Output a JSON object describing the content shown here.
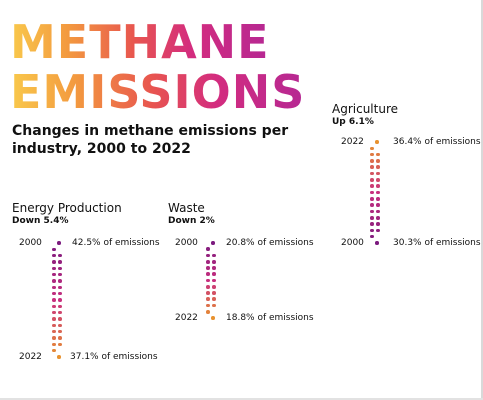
{
  "title": [
    "METHANE",
    "EMISSIONS"
  ],
  "subtitle": "Changes in methane emissions per industry, 2000 to 2022",
  "colors": {
    "gradient": [
      "#f9c94c",
      "#f39a3f",
      "#e8554f",
      "#d32c7f",
      "#b52893"
    ],
    "dot_start": "#7b1a7e",
    "dot_mid": "#c8307f",
    "dot_end": "#e8922f"
  },
  "chart_data": {
    "type": "dot-slope",
    "title": "Changes in methane emissions per industry, 2000 to 2022",
    "unit": "% of emissions",
    "series": [
      {
        "name": "Energy Production",
        "change": "Down 5.4%",
        "values": [
          {
            "year": "2000",
            "share": 42.5,
            "label": "42.5% of emissions"
          },
          {
            "year": "2022",
            "share": 37.1,
            "label": "37.1% of emissions"
          }
        ]
      },
      {
        "name": "Waste",
        "change": "Down 2%",
        "values": [
          {
            "year": "2000",
            "share": 20.8,
            "label": "20.8% of emissions"
          },
          {
            "year": "2022",
            "share": 18.8,
            "label": "18.8% of emissions"
          }
        ]
      },
      {
        "name": "Agriculture",
        "change": "Up 6.1%",
        "values": [
          {
            "year": "2000",
            "share": 30.3,
            "label": "30.3% of emissions"
          },
          {
            "year": "2022",
            "share": 36.4,
            "label": "36.4% of emissions"
          }
        ]
      }
    ]
  }
}
